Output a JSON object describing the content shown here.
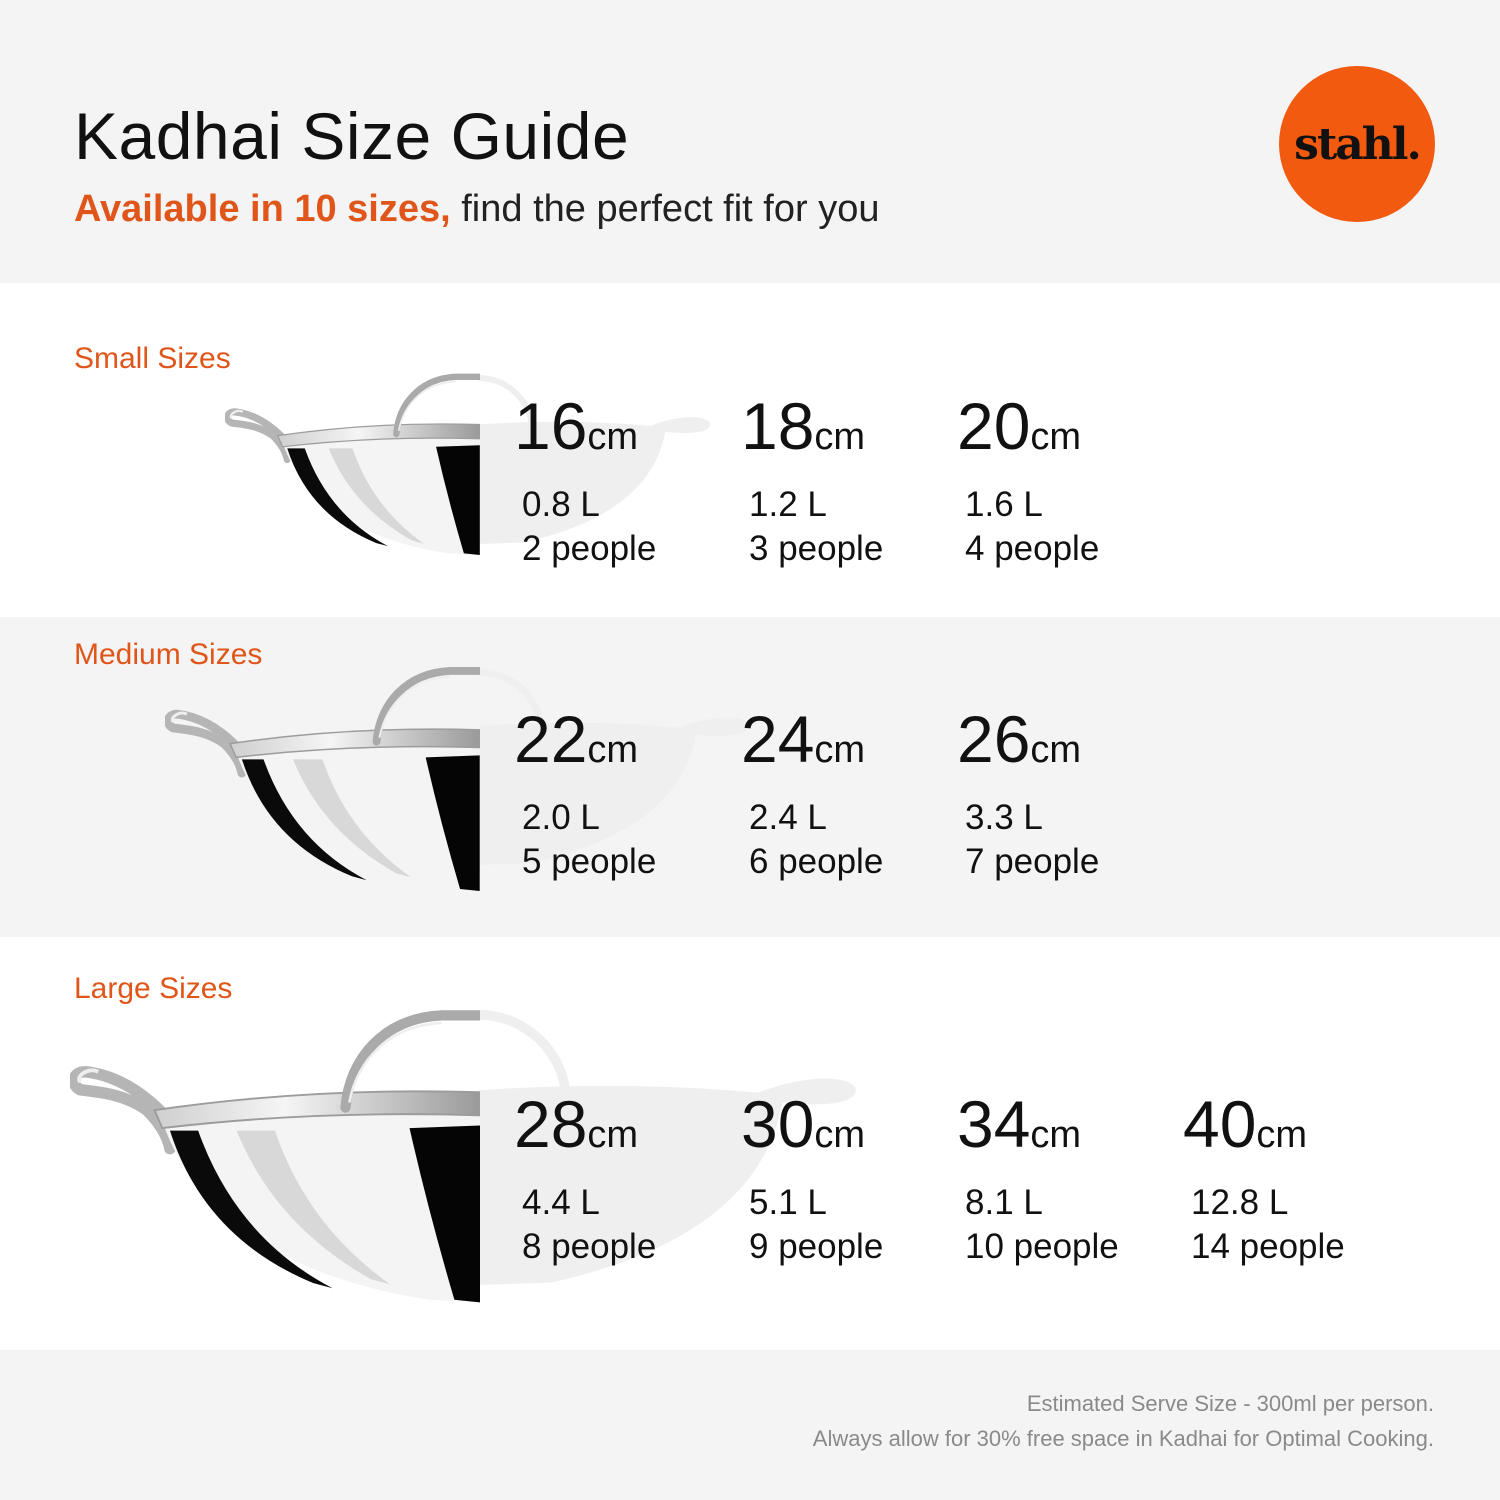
{
  "header": {
    "title": "Kadhai Size Guide",
    "subtitle_accent": "Available in 10 sizes,",
    "subtitle_rest": " find the perfect fit for you",
    "logo_text": "stahl."
  },
  "colors": {
    "accent": "#e0561a",
    "logo_bg": "#f25a10",
    "band_bg": "#f4f4f4"
  },
  "sections": [
    {
      "label": "Small Sizes",
      "sizes": [
        {
          "diameter": "16",
          "unit": "cm",
          "volume": "0.8 L",
          "people": "2 people"
        },
        {
          "diameter": "18",
          "unit": "cm",
          "volume": "1.2 L",
          "people": "3 people"
        },
        {
          "diameter": "20",
          "unit": "cm",
          "volume": "1.6 L",
          "people": "4 people"
        }
      ]
    },
    {
      "label": "Medium Sizes",
      "sizes": [
        {
          "diameter": "22",
          "unit": "cm",
          "volume": "2.0 L",
          "people": "5 people"
        },
        {
          "diameter": "24",
          "unit": "cm",
          "volume": "2.4 L",
          "people": "6 people"
        },
        {
          "diameter": "26",
          "unit": "cm",
          "volume": "3.3 L",
          "people": "7 people"
        }
      ]
    },
    {
      "label": "Large Sizes",
      "sizes": [
        {
          "diameter": "28",
          "unit": "cm",
          "volume": "4.4 L",
          "people": "8 people"
        },
        {
          "diameter": "30",
          "unit": "cm",
          "volume": "5.1 L",
          "people": "9 people"
        },
        {
          "diameter": "34",
          "unit": "cm",
          "volume": "8.1 L",
          "people": "10 people"
        },
        {
          "diameter": "40",
          "unit": "cm",
          "volume": "12.8 L",
          "people": "14 people"
        }
      ]
    }
  ],
  "footer": {
    "line1": "Estimated Serve Size - 300ml per person.",
    "line2": "Always allow for 30% free space in Kadhai for Optimal Cooking."
  }
}
